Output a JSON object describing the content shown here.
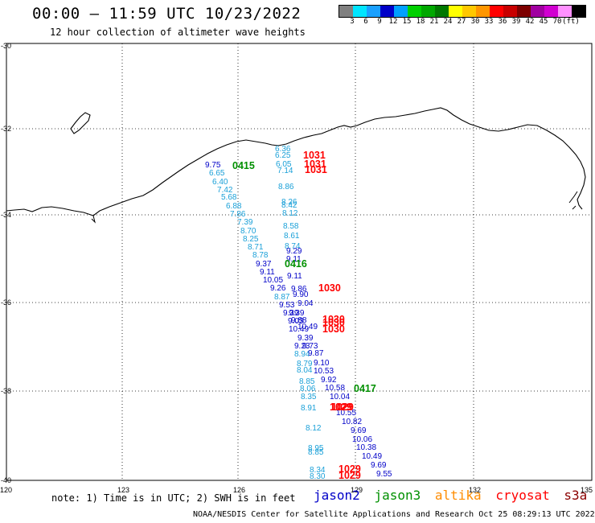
{
  "title": "00:00 – 11:59 UTC 10/23/2022",
  "subtitle": "12 hour collection of altimeter wave heights",
  "color_scale": {
    "colors": [
      "#808080",
      "#00e5ff",
      "#1aa0ff",
      "#0000c8",
      "#00a0ff",
      "#00d000",
      "#00a800",
      "#007800",
      "#ffff00",
      "#ffc800",
      "#ff9600",
      "#ff0000",
      "#c80000",
      "#7d0000",
      "#a000a0",
      "#d000d0",
      "#ff90ff",
      "#000000"
    ],
    "labels": [
      "3",
      "6",
      "9",
      "12",
      "15",
      "18",
      "21",
      "24",
      "27",
      "30",
      "33",
      "36",
      "39",
      "42",
      "45",
      "70",
      "(ft)"
    ]
  },
  "map": {
    "lat_labels": [
      "-30",
      "-32",
      "-34",
      "-36",
      "-38",
      "-40"
    ],
    "lon_labels": [
      "120",
      "123",
      "126",
      "129",
      "132",
      "135"
    ]
  },
  "satellites": {
    "jason2": {
      "name": "jason2",
      "color": "#0000c8"
    },
    "jason3": {
      "name": "jason3",
      "color": "#009000"
    },
    "altika": {
      "name": "altika",
      "color": "#ff8c00"
    },
    "cryosat": {
      "name": "cryosat",
      "color": "#ff0000"
    },
    "s3a": {
      "name": "s3a",
      "color": "#8b0000"
    }
  },
  "pass_times": [
    {
      "text": "1031",
      "sat": "cryosat"
    },
    {
      "text": "1031",
      "sat": "cryosat"
    },
    {
      "text": "1031",
      "sat": "cryosat"
    },
    {
      "text": "0415",
      "sat": "jason3"
    },
    {
      "text": "0416",
      "sat": "jason3"
    },
    {
      "text": "1030",
      "sat": "cryosat"
    },
    {
      "text": "1030",
      "sat": "cryosat"
    },
    {
      "text": "1030",
      "sat": "cryosat"
    },
    {
      "text": "1030",
      "sat": "cryosat"
    },
    {
      "text": "0417",
      "sat": "jason3"
    },
    {
      "text": "1029",
      "sat": "cryosat"
    },
    {
      "text": "1029",
      "sat": "cryosat"
    },
    {
      "text": "1029",
      "sat": "cryosat"
    },
    {
      "text": "1029",
      "sat": "cryosat"
    }
  ],
  "track_a": [
    "9.75",
    "6.65",
    "6.40",
    "7.42",
    "5.68",
    "6.88",
    "7.86",
    "7.39",
    "8.70",
    "8.25",
    "8.71",
    "8.78",
    "9.37",
    "9.11",
    "10.05",
    "9.26",
    "8.87",
    "9.53",
    "9.39",
    "9.03",
    "10.49",
    "9.39",
    "9.23",
    "8.94",
    "8.79",
    "8.04",
    "8.85",
    "8.06",
    "8.35",
    "8.91"
  ],
  "track_b": [
    "6.36",
    "6.25",
    "6.05",
    "7.14",
    "8.86",
    "8.26",
    "8.42",
    "8.12",
    "8.58",
    "8.61",
    "8.74",
    "9.29",
    "9.11",
    "9.11",
    "9.86",
    "9.90",
    "9.04",
    "9.39",
    "9.88",
    "10.49",
    "9.73",
    "9.87",
    "9.10",
    "10.53",
    "9.92",
    "10.58",
    "10.04",
    "10.55",
    "10.82",
    "9.69",
    "10.06",
    "10.38",
    "10.49",
    "9.69",
    "9.55"
  ],
  "track_c": [
    "8.12",
    "8.95",
    "8.85",
    "8.34",
    "8.30"
  ],
  "note": "note: 1) Time is in UTC; 2) SWH is in feet",
  "footer": "NOAA/NESDIS Center for Satellite Applications and Research   Oct 25 08:29:13 UTC 2022"
}
